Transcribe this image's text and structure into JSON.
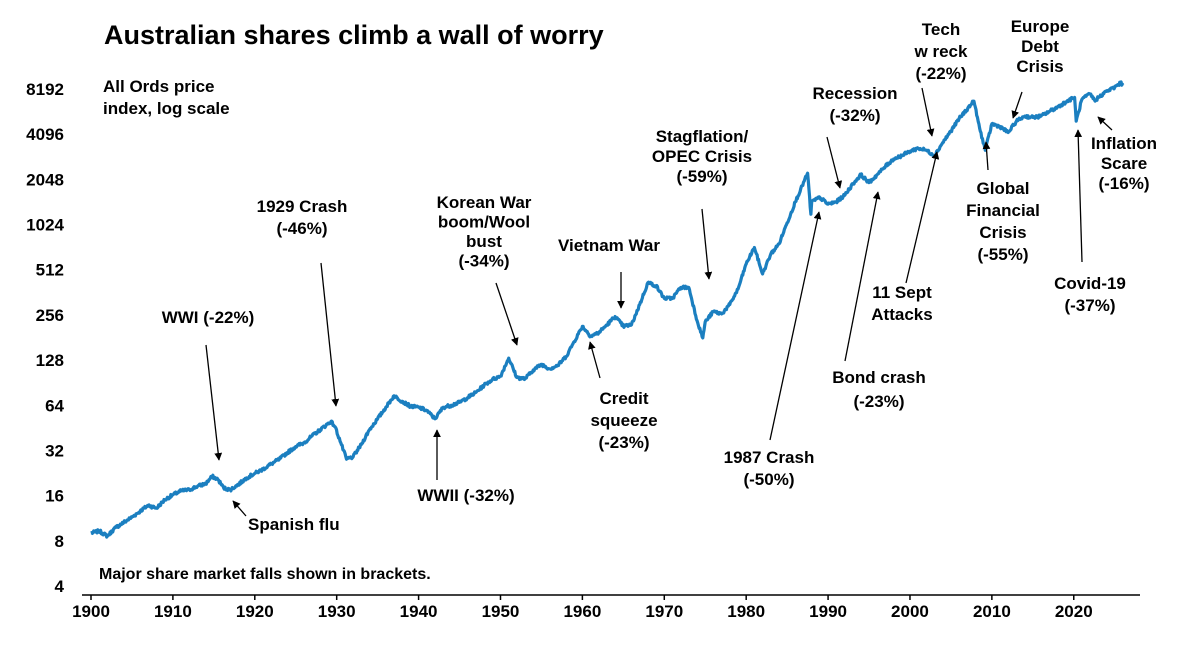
{
  "colors": {
    "line": "#1b7fc0",
    "axis": "#000000",
    "text": "#000000"
  },
  "chart_data": {
    "type": "line",
    "title": "Australian shares climb a wall of worry",
    "subtitle_lines": [
      "All Ords price",
      "index, log scale"
    ],
    "note": "Major share market falls shown in brackets.",
    "xlabel": "",
    "ylabel": "",
    "log_scale_y": true,
    "grid": false,
    "xlim": [
      1900,
      2026.5
    ],
    "ylim": [
      4,
      13000
    ],
    "x_ticks": [
      1900,
      1910,
      1920,
      1930,
      1940,
      1950,
      1960,
      1970,
      1980,
      1990,
      2000,
      2010,
      2020
    ],
    "y_ticks": [
      4,
      8,
      16,
      32,
      64,
      128,
      256,
      512,
      1024,
      2048,
      4096,
      8192
    ],
    "series": [
      {
        "values": [
          [
            1900,
            9.0
          ],
          [
            1901,
            9.3
          ],
          [
            1902,
            8.6
          ],
          [
            1903,
            9.8
          ],
          [
            1904,
            10.6
          ],
          [
            1905,
            11.5
          ],
          [
            1906,
            12.6
          ],
          [
            1907,
            13.8
          ],
          [
            1908,
            13.2
          ],
          [
            1909,
            15.0
          ],
          [
            1910,
            16.2
          ],
          [
            1911,
            17.2
          ],
          [
            1912,
            17.5
          ],
          [
            1913,
            18.5
          ],
          [
            1914,
            19.2
          ],
          [
            1914.8,
            21.5
          ],
          [
            1915.5,
            20.5
          ],
          [
            1916.2,
            18.0
          ],
          [
            1917,
            17.5
          ],
          [
            1918,
            19.0
          ],
          [
            1919,
            21.0
          ],
          [
            1920,
            22.5
          ],
          [
            1921,
            24.0
          ],
          [
            1922,
            26.0
          ],
          [
            1923,
            28.0
          ],
          [
            1924,
            31.0
          ],
          [
            1925,
            34.0
          ],
          [
            1926,
            36.0
          ],
          [
            1927,
            40.0
          ],
          [
            1928,
            44.0
          ],
          [
            1929.3,
            50.0
          ],
          [
            1929.8,
            46.0
          ],
          [
            1930.5,
            36.0
          ],
          [
            1931.2,
            28.0
          ],
          [
            1932,
            29.0
          ],
          [
            1933,
            35.0
          ],
          [
            1934,
            44.0
          ],
          [
            1935,
            52.0
          ],
          [
            1936,
            62.0
          ],
          [
            1937,
            74.0
          ],
          [
            1938,
            68.0
          ],
          [
            1939,
            63.0
          ],
          [
            1940,
            62.0
          ],
          [
            1941,
            59.0
          ],
          [
            1942,
            52.0
          ],
          [
            1943,
            62.0
          ],
          [
            1944,
            64.0
          ],
          [
            1945,
            67.0
          ],
          [
            1946,
            72.0
          ],
          [
            1947,
            78.0
          ],
          [
            1948,
            87.0
          ],
          [
            1949,
            95.0
          ],
          [
            1950,
            100.0
          ],
          [
            1951,
            132.0
          ],
          [
            1952,
            98.0
          ],
          [
            1953,
            96.0
          ],
          [
            1954,
            110.0
          ],
          [
            1955,
            120.0
          ],
          [
            1956,
            112.0
          ],
          [
            1957,
            118.0
          ],
          [
            1958,
            135.0
          ],
          [
            1959,
            170.0
          ],
          [
            1960,
            215.0
          ],
          [
            1961,
            185.0
          ],
          [
            1962,
            195.0
          ],
          [
            1963,
            220.0
          ],
          [
            1964,
            250.0
          ],
          [
            1965,
            215.0
          ],
          [
            1966,
            220.0
          ],
          [
            1967,
            300.0
          ],
          [
            1968,
            420.0
          ],
          [
            1969,
            400.0
          ],
          [
            1970,
            330.0
          ],
          [
            1971,
            330.0
          ],
          [
            1972,
            390.0
          ],
          [
            1973,
            390.0
          ],
          [
            1974,
            235.0
          ],
          [
            1974.7,
            180.0
          ],
          [
            1975,
            230.0
          ],
          [
            1976,
            270.0
          ],
          [
            1977,
            260.0
          ],
          [
            1978,
            300.0
          ],
          [
            1979,
            380.0
          ],
          [
            1980,
            560.0
          ],
          [
            1981,
            720.0
          ],
          [
            1982,
            480.0
          ],
          [
            1983,
            650.0
          ],
          [
            1984,
            760.0
          ],
          [
            1985,
            1050.0
          ],
          [
            1986,
            1450.0
          ],
          [
            1987.5,
            2250.0
          ],
          [
            1987.9,
            1200.0
          ],
          [
            1988,
            1450.0
          ],
          [
            1989,
            1550.0
          ],
          [
            1990,
            1400.0
          ],
          [
            1991,
            1450.0
          ],
          [
            1992,
            1600.0
          ],
          [
            1993,
            1900.0
          ],
          [
            1994,
            2200.0
          ],
          [
            1995,
            1950.0
          ],
          [
            1996,
            2200.0
          ],
          [
            1997,
            2500.0
          ],
          [
            1998,
            2800.0
          ],
          [
            1999,
            2950.0
          ],
          [
            2000,
            3150.0
          ],
          [
            2001,
            3300.0
          ],
          [
            2002,
            3200.0
          ],
          [
            2003,
            2950.0
          ],
          [
            2004,
            3600.0
          ],
          [
            2005,
            4300.0
          ],
          [
            2006,
            5200.0
          ],
          [
            2007.8,
            6800.0
          ],
          [
            2008.5,
            4500.0
          ],
          [
            2009.2,
            3200.0
          ],
          [
            2010,
            4800.0
          ],
          [
            2011,
            4600.0
          ],
          [
            2012,
            4200.0
          ],
          [
            2013,
            5000.0
          ],
          [
            2014,
            5400.0
          ],
          [
            2015,
            5300.0
          ],
          [
            2016,
            5400.0
          ],
          [
            2017,
            5800.0
          ],
          [
            2018,
            6200.0
          ],
          [
            2019,
            6700.0
          ],
          [
            2020.1,
            7200.0
          ],
          [
            2020.3,
            5000.0
          ],
          [
            2021,
            7000.0
          ],
          [
            2022,
            7600.0
          ],
          [
            2022.6,
            6800.0
          ],
          [
            2023,
            7200.0
          ],
          [
            2024,
            7900.0
          ],
          [
            2025,
            8400.0
          ],
          [
            2025.7,
            9000.0
          ],
          [
            2026,
            8700.0
          ]
        ]
      }
    ],
    "annotations": [
      {
        "lines": [
          "WWI (-22%)"
        ],
        "x": 1915.5,
        "y": 20.5
      },
      {
        "lines": [
          "Spanish flu"
        ],
        "x": 1918.5,
        "y": 19.0
      },
      {
        "lines": [
          "1929 Crash",
          "(-46%)"
        ],
        "x": 1930.0,
        "y": 46.0
      },
      {
        "lines": [
          "WWII (-32%)"
        ],
        "x": 1942.0,
        "y": 54.0
      },
      {
        "lines": [
          "Korean War",
          "boom/Wool",
          "bust",
          "(-34%)"
        ],
        "x": 1951.5,
        "y": 130.0
      },
      {
        "lines": [
          "Vietnam War"
        ],
        "x": 1964.5,
        "y": 245.0
      },
      {
        "lines": [
          "Credit",
          "squeeze",
          "(-23%)"
        ],
        "x": 1960.8,
        "y": 190.0
      },
      {
        "lines": [
          "Stagflation/",
          "OPEC Crisis",
          "(-59%)"
        ],
        "x": 1974.7,
        "y": 400.0
      },
      {
        "lines": [
          "1987 Crash",
          "(-50%)"
        ],
        "x": 1987.8,
        "y": 1250.0
      },
      {
        "lines": [
          "Recession",
          "(-32%)"
        ],
        "x": 1990.5,
        "y": 1600.0
      },
      {
        "lines": [
          "Bond crash",
          "(-23%)"
        ],
        "x": 1994.8,
        "y": 1950.0
      },
      {
        "lines": [
          "Tech",
          "w reck",
          "(-22%)"
        ],
        "x": 2002.5,
        "y": 3350.0
      },
      {
        "lines": [
          "11 Sept",
          "Attacks"
        ],
        "x": 2002.6,
        "y": 3050.0
      },
      {
        "lines": [
          "Europe",
          "Debt",
          "Crisis"
        ],
        "x": 2011.8,
        "y": 4600.0
      },
      {
        "lines": [
          "Global",
          "Financial",
          "Crisis",
          "(-55%)"
        ],
        "x": 2009.0,
        "y": 3700.0
      },
      {
        "lines": [
          "Covid-19",
          "(-37%)"
        ],
        "x": 2020.2,
        "y": 5100.0
      },
      {
        "lines": [
          "Inflation",
          "Scare",
          "(-16%)"
        ],
        "x": 2022.6,
        "y": 6800.0
      }
    ]
  }
}
